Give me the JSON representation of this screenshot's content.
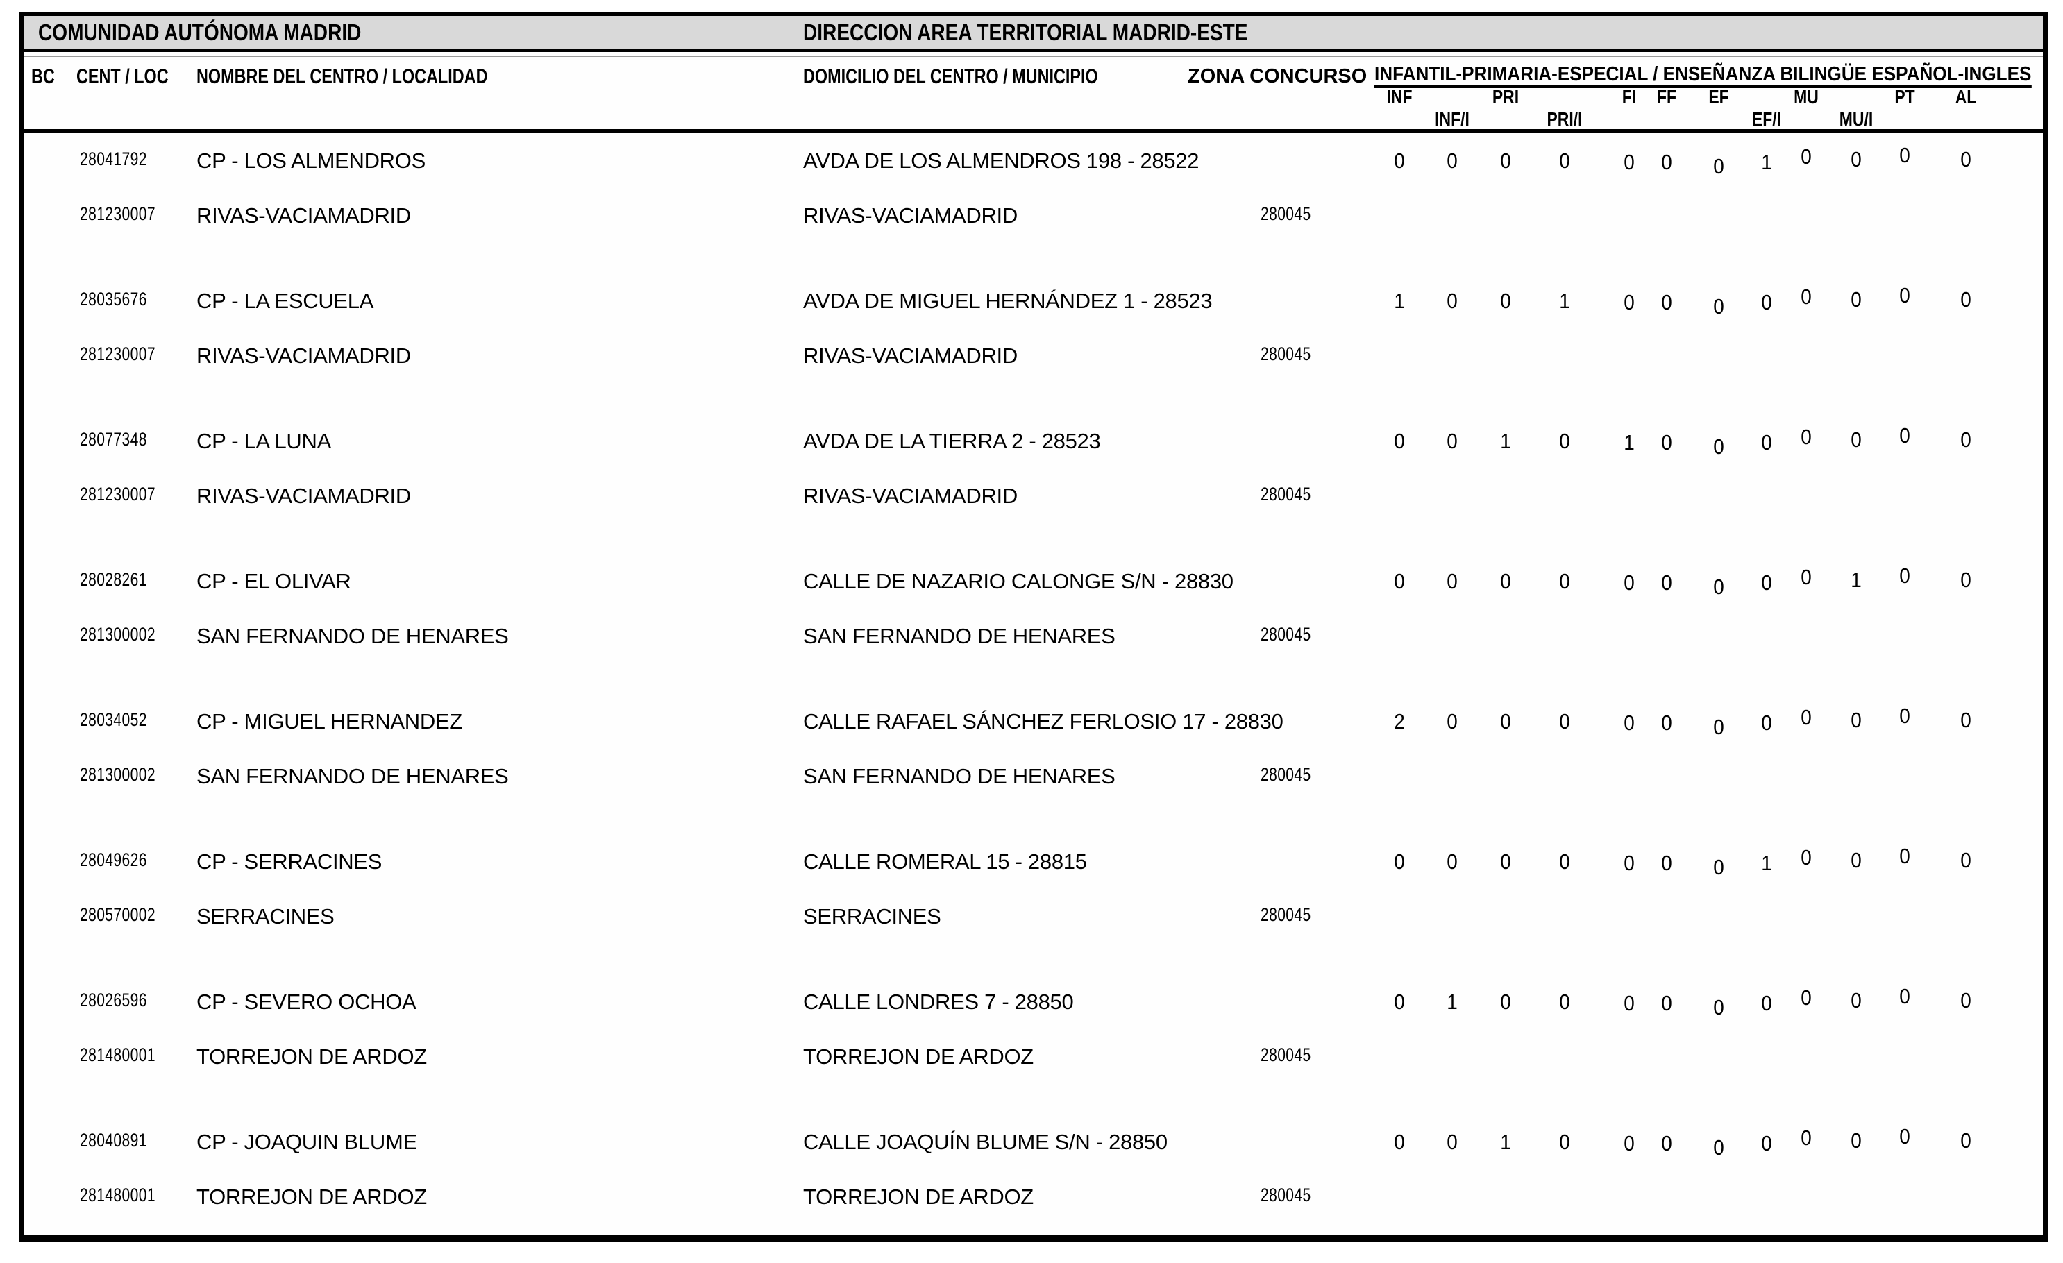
{
  "header": {
    "region_label": "COMUNIDAD AUTÓNOMA MADRID",
    "direction_label": "DIRECCION AREA TERRITORIAL MADRID-ESTE"
  },
  "columns": {
    "bc": "BC",
    "cent_loc": "CENT / LOC",
    "nombre": "NOMBRE DEL CENTRO / LOCALIDAD",
    "domicilio": "DOMICILIO DEL CENTRO / MUNICIPIO",
    "zona": "ZONA CONCURSO",
    "group": "INFANTIL-PRIMARIA-ESPECIAL / ENSEÑANZA BILINGÜE ESPAÑOL-INGLES",
    "subcolumns": [
      "INF",
      "INF/I",
      "PRI",
      "PRI/I",
      "FI",
      "FF",
      "EF",
      "EF/I",
      "MU",
      "MU/I",
      "PT",
      "AL"
    ]
  },
  "rows": [
    {
      "cent": "28041792",
      "nombre": "CP - LOS ALMENDROS",
      "loc": "281230007",
      "localidad": "RIVAS-VACIAMADRID",
      "domicilio": "AVDA DE LOS ALMENDROS 198 - 28522",
      "municipio": "RIVAS-VACIAMADRID",
      "zona": "280045",
      "values": [
        0,
        0,
        0,
        0,
        0,
        0,
        0,
        1,
        0,
        0,
        0,
        0
      ]
    },
    {
      "cent": "28035676",
      "nombre": "CP - LA ESCUELA",
      "loc": "281230007",
      "localidad": "RIVAS-VACIAMADRID",
      "domicilio": "AVDA DE MIGUEL HERNÁNDEZ 1 - 28523",
      "municipio": "RIVAS-VACIAMADRID",
      "zona": "280045",
      "values": [
        1,
        0,
        0,
        1,
        0,
        0,
        0,
        0,
        0,
        0,
        0,
        0
      ]
    },
    {
      "cent": "28077348",
      "nombre": "CP - LA LUNA",
      "loc": "281230007",
      "localidad": "RIVAS-VACIAMADRID",
      "domicilio": "AVDA DE LA TIERRA 2 - 28523",
      "municipio": "RIVAS-VACIAMADRID",
      "zona": "280045",
      "values": [
        0,
        0,
        1,
        0,
        1,
        0,
        0,
        0,
        0,
        0,
        0,
        0
      ]
    },
    {
      "cent": "28028261",
      "nombre": "CP - EL OLIVAR",
      "loc": "281300002",
      "localidad": "SAN FERNANDO DE HENARES",
      "domicilio": "CALLE DE NAZARIO CALONGE S/N - 28830",
      "municipio": "SAN FERNANDO DE HENARES",
      "zona": "280045",
      "values": [
        0,
        0,
        0,
        0,
        0,
        0,
        0,
        0,
        0,
        1,
        0,
        0
      ]
    },
    {
      "cent": "28034052",
      "nombre": "CP - MIGUEL HERNANDEZ",
      "loc": "281300002",
      "localidad": "SAN FERNANDO DE HENARES",
      "domicilio": "CALLE RAFAEL SÁNCHEZ FERLOSIO 17 - 28830",
      "municipio": "SAN FERNANDO DE HENARES",
      "zona": "280045",
      "values": [
        2,
        0,
        0,
        0,
        0,
        0,
        0,
        0,
        0,
        0,
        0,
        0
      ]
    },
    {
      "cent": "28049626",
      "nombre": "CP - SERRACINES",
      "loc": "280570002",
      "localidad": "SERRACINES",
      "domicilio": "CALLE ROMERAL 15 - 28815",
      "municipio": "SERRACINES",
      "zona": "280045",
      "values": [
        0,
        0,
        0,
        0,
        0,
        0,
        0,
        1,
        0,
        0,
        0,
        0
      ]
    },
    {
      "cent": "28026596",
      "nombre": "CP - SEVERO OCHOA",
      "loc": "281480001",
      "localidad": "TORREJON DE ARDOZ",
      "domicilio": "CALLE LONDRES 7 - 28850",
      "municipio": "TORREJON DE ARDOZ",
      "zona": "280045",
      "values": [
        0,
        1,
        0,
        0,
        0,
        0,
        0,
        0,
        0,
        0,
        0,
        0
      ]
    },
    {
      "cent": "28040891",
      "nombre": "CP - JOAQUIN BLUME",
      "loc": "281480001",
      "localidad": "TORREJON DE ARDOZ",
      "domicilio": "CALLE JOAQUÍN BLUME S/N - 28850",
      "municipio": "TORREJON DE ARDOZ",
      "zona": "280045",
      "values": [
        0,
        0,
        1,
        0,
        0,
        0,
        0,
        0,
        0,
        0,
        0,
        0
      ]
    }
  ],
  "colors": {
    "band_gray": "#d9d9d9",
    "border": "#000000",
    "text": "#000000",
    "background": "#ffffff"
  }
}
